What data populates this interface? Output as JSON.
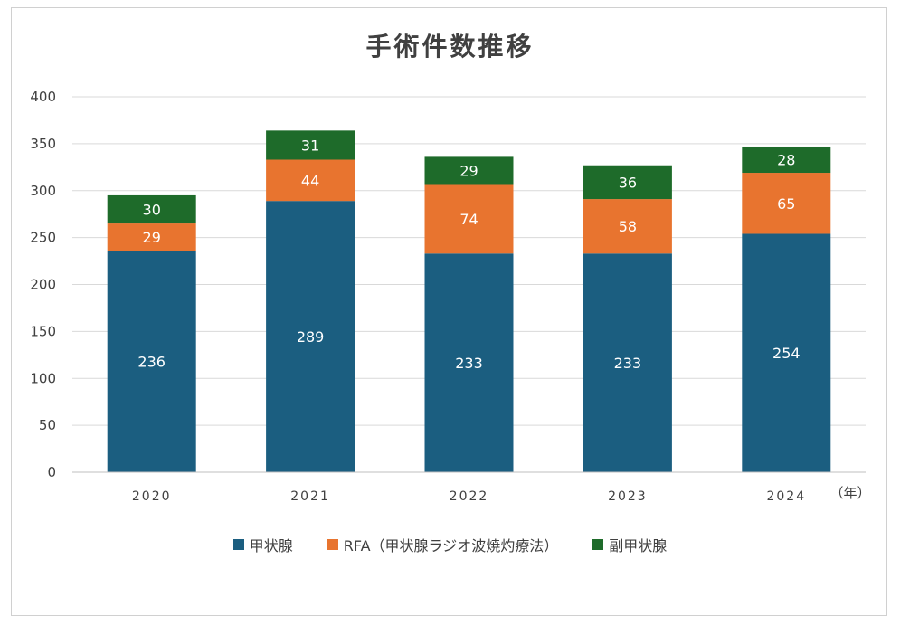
{
  "chart_data": {
    "type": "bar",
    "stacked": true,
    "title": "手術件数推移",
    "xlabel": "（年）",
    "ylabel": "",
    "categories": [
      "2020",
      "2021",
      "2022",
      "2023",
      "2024"
    ],
    "ylim": [
      0,
      400
    ],
    "yticks": [
      0,
      50,
      100,
      150,
      200,
      250,
      300,
      350,
      400
    ],
    "grid": true,
    "legend_position": "bottom",
    "series": [
      {
        "name": "甲状腺",
        "color": "#1b5e80",
        "values": [
          236,
          289,
          233,
          233,
          254
        ]
      },
      {
        "name": "RFA（甲状腺ラジオ波焼灼療法）",
        "color": "#e8742f",
        "values": [
          29,
          44,
          74,
          58,
          65
        ]
      },
      {
        "name": "副甲状腺",
        "color": "#1e6b2a",
        "values": [
          30,
          31,
          29,
          36,
          28
        ]
      }
    ]
  }
}
